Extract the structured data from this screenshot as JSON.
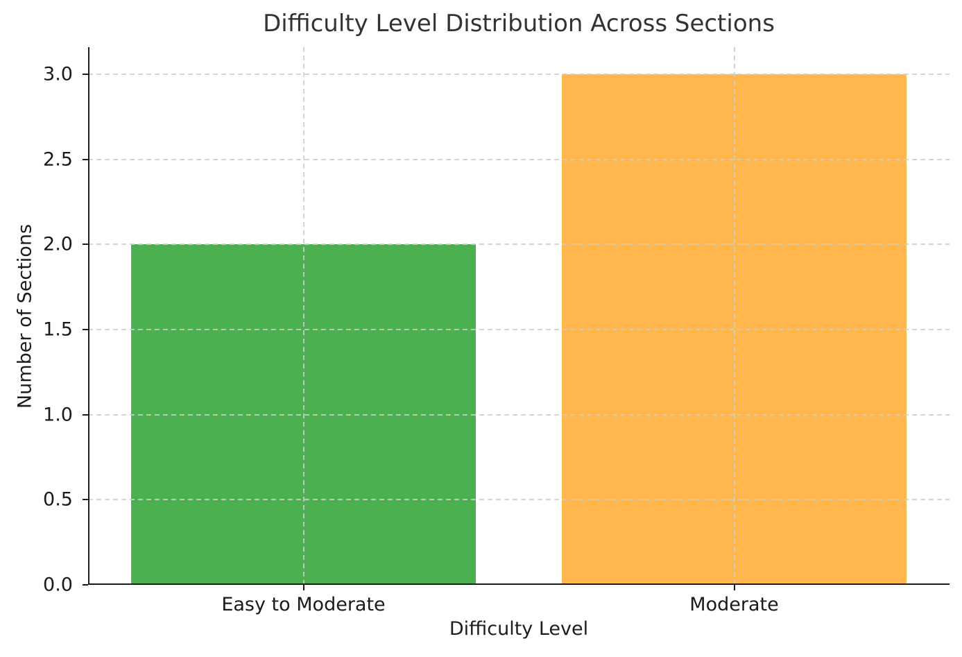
{
  "chart_data": {
    "type": "bar",
    "title": "Difficulty Level Distribution Across Sections",
    "xlabel": "Difficulty Level",
    "ylabel": "Number of Sections",
    "categories": [
      "Easy to Moderate",
      "Moderate"
    ],
    "values": [
      2,
      3
    ],
    "bar_colors": [
      "#4CAF50",
      "#FFB74D"
    ],
    "bar_width_fraction": 0.8,
    "ylim": [
      0,
      3.0
    ],
    "yticks": [
      0.0,
      0.5,
      1.0,
      1.5,
      2.0,
      2.5,
      3.0
    ],
    "ytick_labels": [
      "0.0",
      "0.5",
      "1.0",
      "1.5",
      "2.0",
      "2.5",
      "3.0"
    ],
    "grid": "dashed lightgray gridlines on both axes, drawn above bars",
    "legend": "none",
    "spines": "left and bottom only"
  }
}
